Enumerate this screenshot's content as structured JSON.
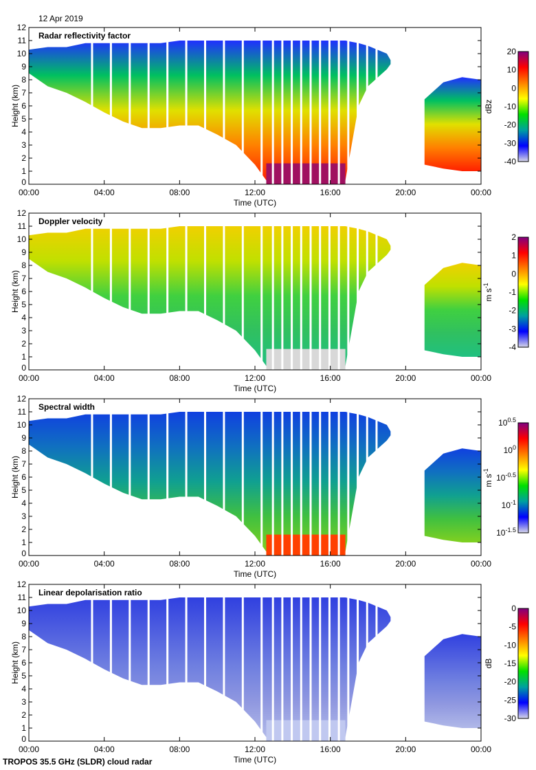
{
  "date_label": "12 Apr 2019",
  "footer": "TROPOS 35.5 GHz (SLDR) cloud radar",
  "chart_data": [
    {
      "type": "heatmap",
      "title": "Radar reflectivity factor",
      "xlabel": "Time (UTC)",
      "ylabel": "Height (km)",
      "xlim_hours": [
        0,
        24
      ],
      "ylim": [
        0,
        12
      ],
      "xticks": [
        "00:00",
        "04:00",
        "08:00",
        "12:00",
        "16:00",
        "20:00",
        "00:00"
      ],
      "yticks": [
        "0",
        "1",
        "2",
        "3",
        "4",
        "5",
        "6",
        "7",
        "8",
        "9",
        "10",
        "11",
        "12"
      ],
      "colorbar": {
        "label": "dBz",
        "range": [
          -40,
          20
        ],
        "ticks": [
          {
            "b": "20"
          },
          {
            "b": "10"
          },
          {
            "b": "0"
          },
          {
            "b": "-10"
          },
          {
            "b": "-20"
          },
          {
            "b": "-30"
          },
          {
            "b": "-40"
          }
        ]
      },
      "colormap": [
        "#d8d8e8",
        "#0000ff",
        "#00a0a0",
        "#00e000",
        "#ffff00",
        "#ff8000",
        "#ff0000",
        "#800080"
      ],
      "cloud_colors": [
        "#2030ff",
        "#00c060",
        "#e0e000",
        "#ff8000",
        "#ff2000"
      ]
    },
    {
      "type": "heatmap",
      "title": "Doppler velocity",
      "xlabel": "Time (UTC)",
      "ylabel": "Height (km)",
      "xlim_hours": [
        0,
        24
      ],
      "ylim": [
        0,
        12
      ],
      "xticks": [
        "00:00",
        "04:00",
        "08:00",
        "12:00",
        "16:00",
        "20:00",
        "00:00"
      ],
      "yticks": [
        "0",
        "1",
        "2",
        "3",
        "4",
        "5",
        "6",
        "7",
        "8",
        "9",
        "10",
        "11",
        "12"
      ],
      "colorbar": {
        "label": "m s",
        "label_sup": "-1",
        "range": [
          -4,
          2
        ],
        "ticks": [
          {
            "b": "2"
          },
          {
            "b": "1"
          },
          {
            "b": "0"
          },
          {
            "b": "-1"
          },
          {
            "b": "-2"
          },
          {
            "b": "-3"
          },
          {
            "b": "-4"
          }
        ]
      },
      "colormap": [
        "#d8d8e8",
        "#0000ff",
        "#00a0a0",
        "#00e000",
        "#ffff00",
        "#ff8000",
        "#ff0000",
        "#800080"
      ],
      "cloud_colors": [
        "#f0d000",
        "#c0e000",
        "#40d040",
        "#30c060",
        "#20c080"
      ]
    },
    {
      "type": "heatmap",
      "title": "Spectral width",
      "xlabel": "Time (UTC)",
      "ylabel": "Height (km)",
      "xlim_hours": [
        0,
        24
      ],
      "ylim": [
        0,
        12
      ],
      "xticks": [
        "00:00",
        "04:00",
        "08:00",
        "12:00",
        "16:00",
        "20:00",
        "00:00"
      ],
      "yticks": [
        "0",
        "1",
        "2",
        "3",
        "4",
        "5",
        "6",
        "7",
        "8",
        "9",
        "10",
        "11",
        "12"
      ],
      "colorbar": {
        "label": "m s",
        "label_sup": "-1",
        "scale": "log",
        "range": [
          -1.5,
          0.5
        ],
        "ticks": [
          {
            "b": "10",
            "e": "0.5"
          },
          {
            "b": "10",
            "e": "0"
          },
          {
            "b": "10",
            "e": "-0.5"
          },
          {
            "b": "10",
            "e": "-1"
          },
          {
            "b": "10",
            "e": "-1.5"
          }
        ]
      },
      "colormap": [
        "#d8d8e8",
        "#0000ff",
        "#00a0a0",
        "#00e000",
        "#ffff00",
        "#ff8000",
        "#ff0000",
        "#800080"
      ],
      "cloud_colors": [
        "#1040e0",
        "#1070c0",
        "#10a090",
        "#40c040",
        "#80d020"
      ]
    },
    {
      "type": "heatmap",
      "title": "Linear depolarisation ratio",
      "xlabel": "Time (UTC)",
      "ylabel": "Height (km)",
      "xlim_hours": [
        0,
        24
      ],
      "ylim": [
        0,
        12
      ],
      "xticks": [
        "00:00",
        "04:00",
        "08:00",
        "12:00",
        "16:00",
        "20:00",
        "00:00"
      ],
      "yticks": [
        "0",
        "1",
        "2",
        "3",
        "4",
        "5",
        "6",
        "7",
        "8",
        "9",
        "10",
        "11",
        "12"
      ],
      "colorbar": {
        "label": "dB",
        "range": [
          -30,
          0
        ],
        "ticks": [
          {
            "b": "0"
          },
          {
            "b": "-5"
          },
          {
            "b": "-10"
          },
          {
            "b": "-15"
          },
          {
            "b": "-20"
          },
          {
            "b": "-25"
          },
          {
            "b": "-30"
          }
        ]
      },
      "colormap": [
        "#d8d8e8",
        "#0000ff",
        "#00a0a0",
        "#00e000",
        "#ffff00",
        "#ff8000",
        "#ff0000",
        "#800080"
      ],
      "cloud_colors": [
        "#3040e0",
        "#5060e0",
        "#7080e0",
        "#9098e0",
        "#b0b8e8"
      ]
    }
  ],
  "cloud_outline": {
    "time_hours": [
      0,
      1,
      2,
      3,
      4,
      5,
      6,
      7,
      8,
      9,
      10,
      11,
      12,
      12.6,
      16.8,
      17.5,
      18,
      19,
      19.2
    ],
    "top_km": [
      10.3,
      10.5,
      10.5,
      10.8,
      10.8,
      10.8,
      10.8,
      10.8,
      11,
      11,
      11,
      11,
      11,
      11,
      11,
      10.8,
      10.6,
      10,
      9.5
    ],
    "base_km": [
      8.5,
      7.5,
      7.0,
      6.3,
      5.5,
      4.8,
      4.3,
      4.3,
      4.5,
      4.5,
      3.8,
      3.0,
      1.5,
      0.3,
      0.3,
      6.0,
      7.5,
      8.8,
      9.2
    ]
  },
  "second_cloud": {
    "time_hours": [
      21,
      22,
      23,
      24
    ],
    "top_km": [
      6.5,
      7.8,
      8.2,
      8.0
    ],
    "base_km": [
      1.5,
      1.2,
      1.0,
      1.0
    ]
  },
  "data_gaps_utc": [
    3.3,
    4.3,
    5.3,
    6.3,
    7.3,
    8.3,
    9.3,
    10.3,
    11.3,
    12.3,
    12.9,
    13.4,
    13.9,
    14.4,
    14.9,
    15.4,
    15.9,
    16.4,
    16.9,
    17.4,
    17.9,
    18.4
  ]
}
